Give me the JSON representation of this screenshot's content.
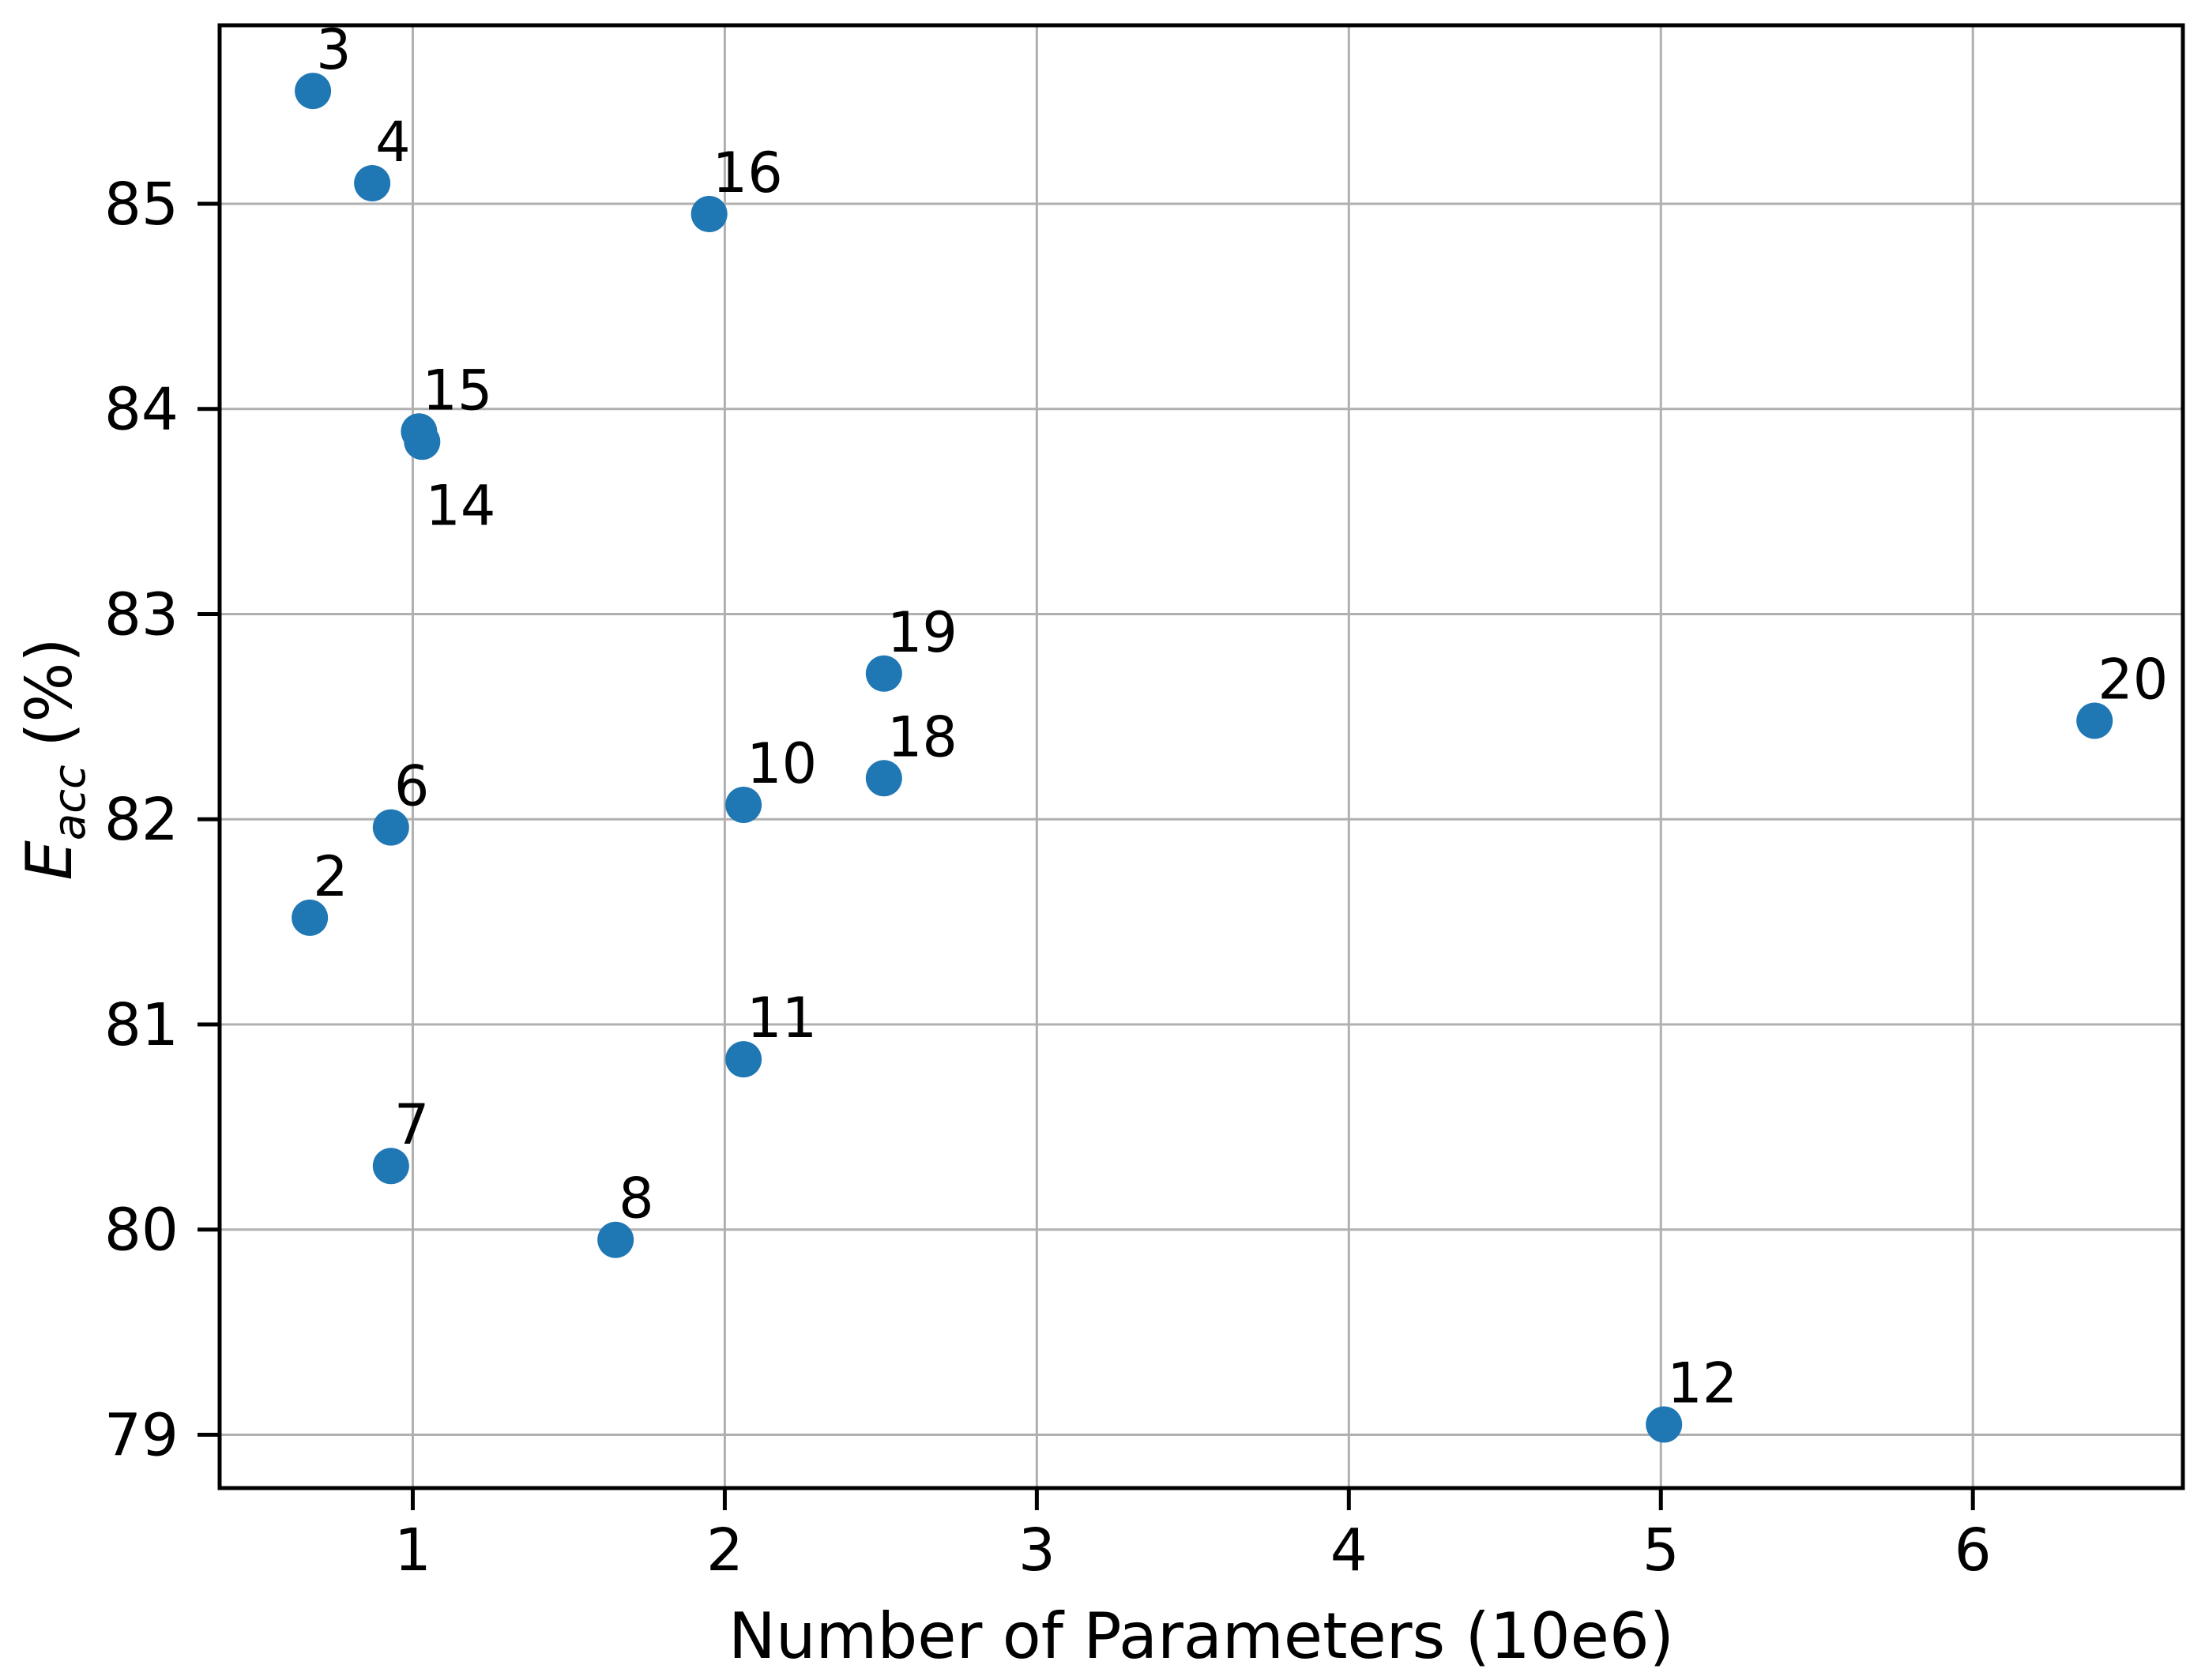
{
  "figure": {
    "background": "#ffffff",
    "ylabel_symbol": "E",
    "ylabel_subscript": "acc",
    "ylabel_unit": "(%)"
  },
  "chart_data": {
    "type": "scatter",
    "title": "",
    "xlabel": "Number of Parameters (10e6)",
    "ylabel": "E_acc (%)",
    "xlim": [
      0.381,
      6.673
    ],
    "ylim": [
      78.74,
      85.87
    ],
    "xticks": [
      1,
      2,
      3,
      4,
      5,
      6
    ],
    "yticks": [
      79,
      80,
      81,
      82,
      83,
      84,
      85
    ],
    "grid": true,
    "legend": "none",
    "marker_color": "#1f77b4",
    "grid_color": "#b0b0b0",
    "spine_color": "#000000",
    "points": [
      {
        "label": "2",
        "x": 0.67,
        "y": 81.52
      },
      {
        "label": "3",
        "x": 0.68,
        "y": 85.55
      },
      {
        "label": "4",
        "x": 0.87,
        "y": 85.1
      },
      {
        "label": "6",
        "x": 0.93,
        "y": 81.96
      },
      {
        "label": "7",
        "x": 0.93,
        "y": 80.31
      },
      {
        "label": "8",
        "x": 1.65,
        "y": 79.95
      },
      {
        "label": "10",
        "x": 2.06,
        "y": 82.07
      },
      {
        "label": "11",
        "x": 2.06,
        "y": 80.83
      },
      {
        "label": "12",
        "x": 5.01,
        "y": 79.05
      },
      {
        "label": "14",
        "x": 1.03,
        "y": 83.84,
        "label_side": "below"
      },
      {
        "label": "15",
        "x": 1.02,
        "y": 83.89
      },
      {
        "label": "16",
        "x": 1.95,
        "y": 84.95
      },
      {
        "label": "18",
        "x": 2.51,
        "y": 82.2
      },
      {
        "label": "19",
        "x": 2.51,
        "y": 82.71
      },
      {
        "label": "20",
        "x": 6.39,
        "y": 82.48
      }
    ]
  }
}
